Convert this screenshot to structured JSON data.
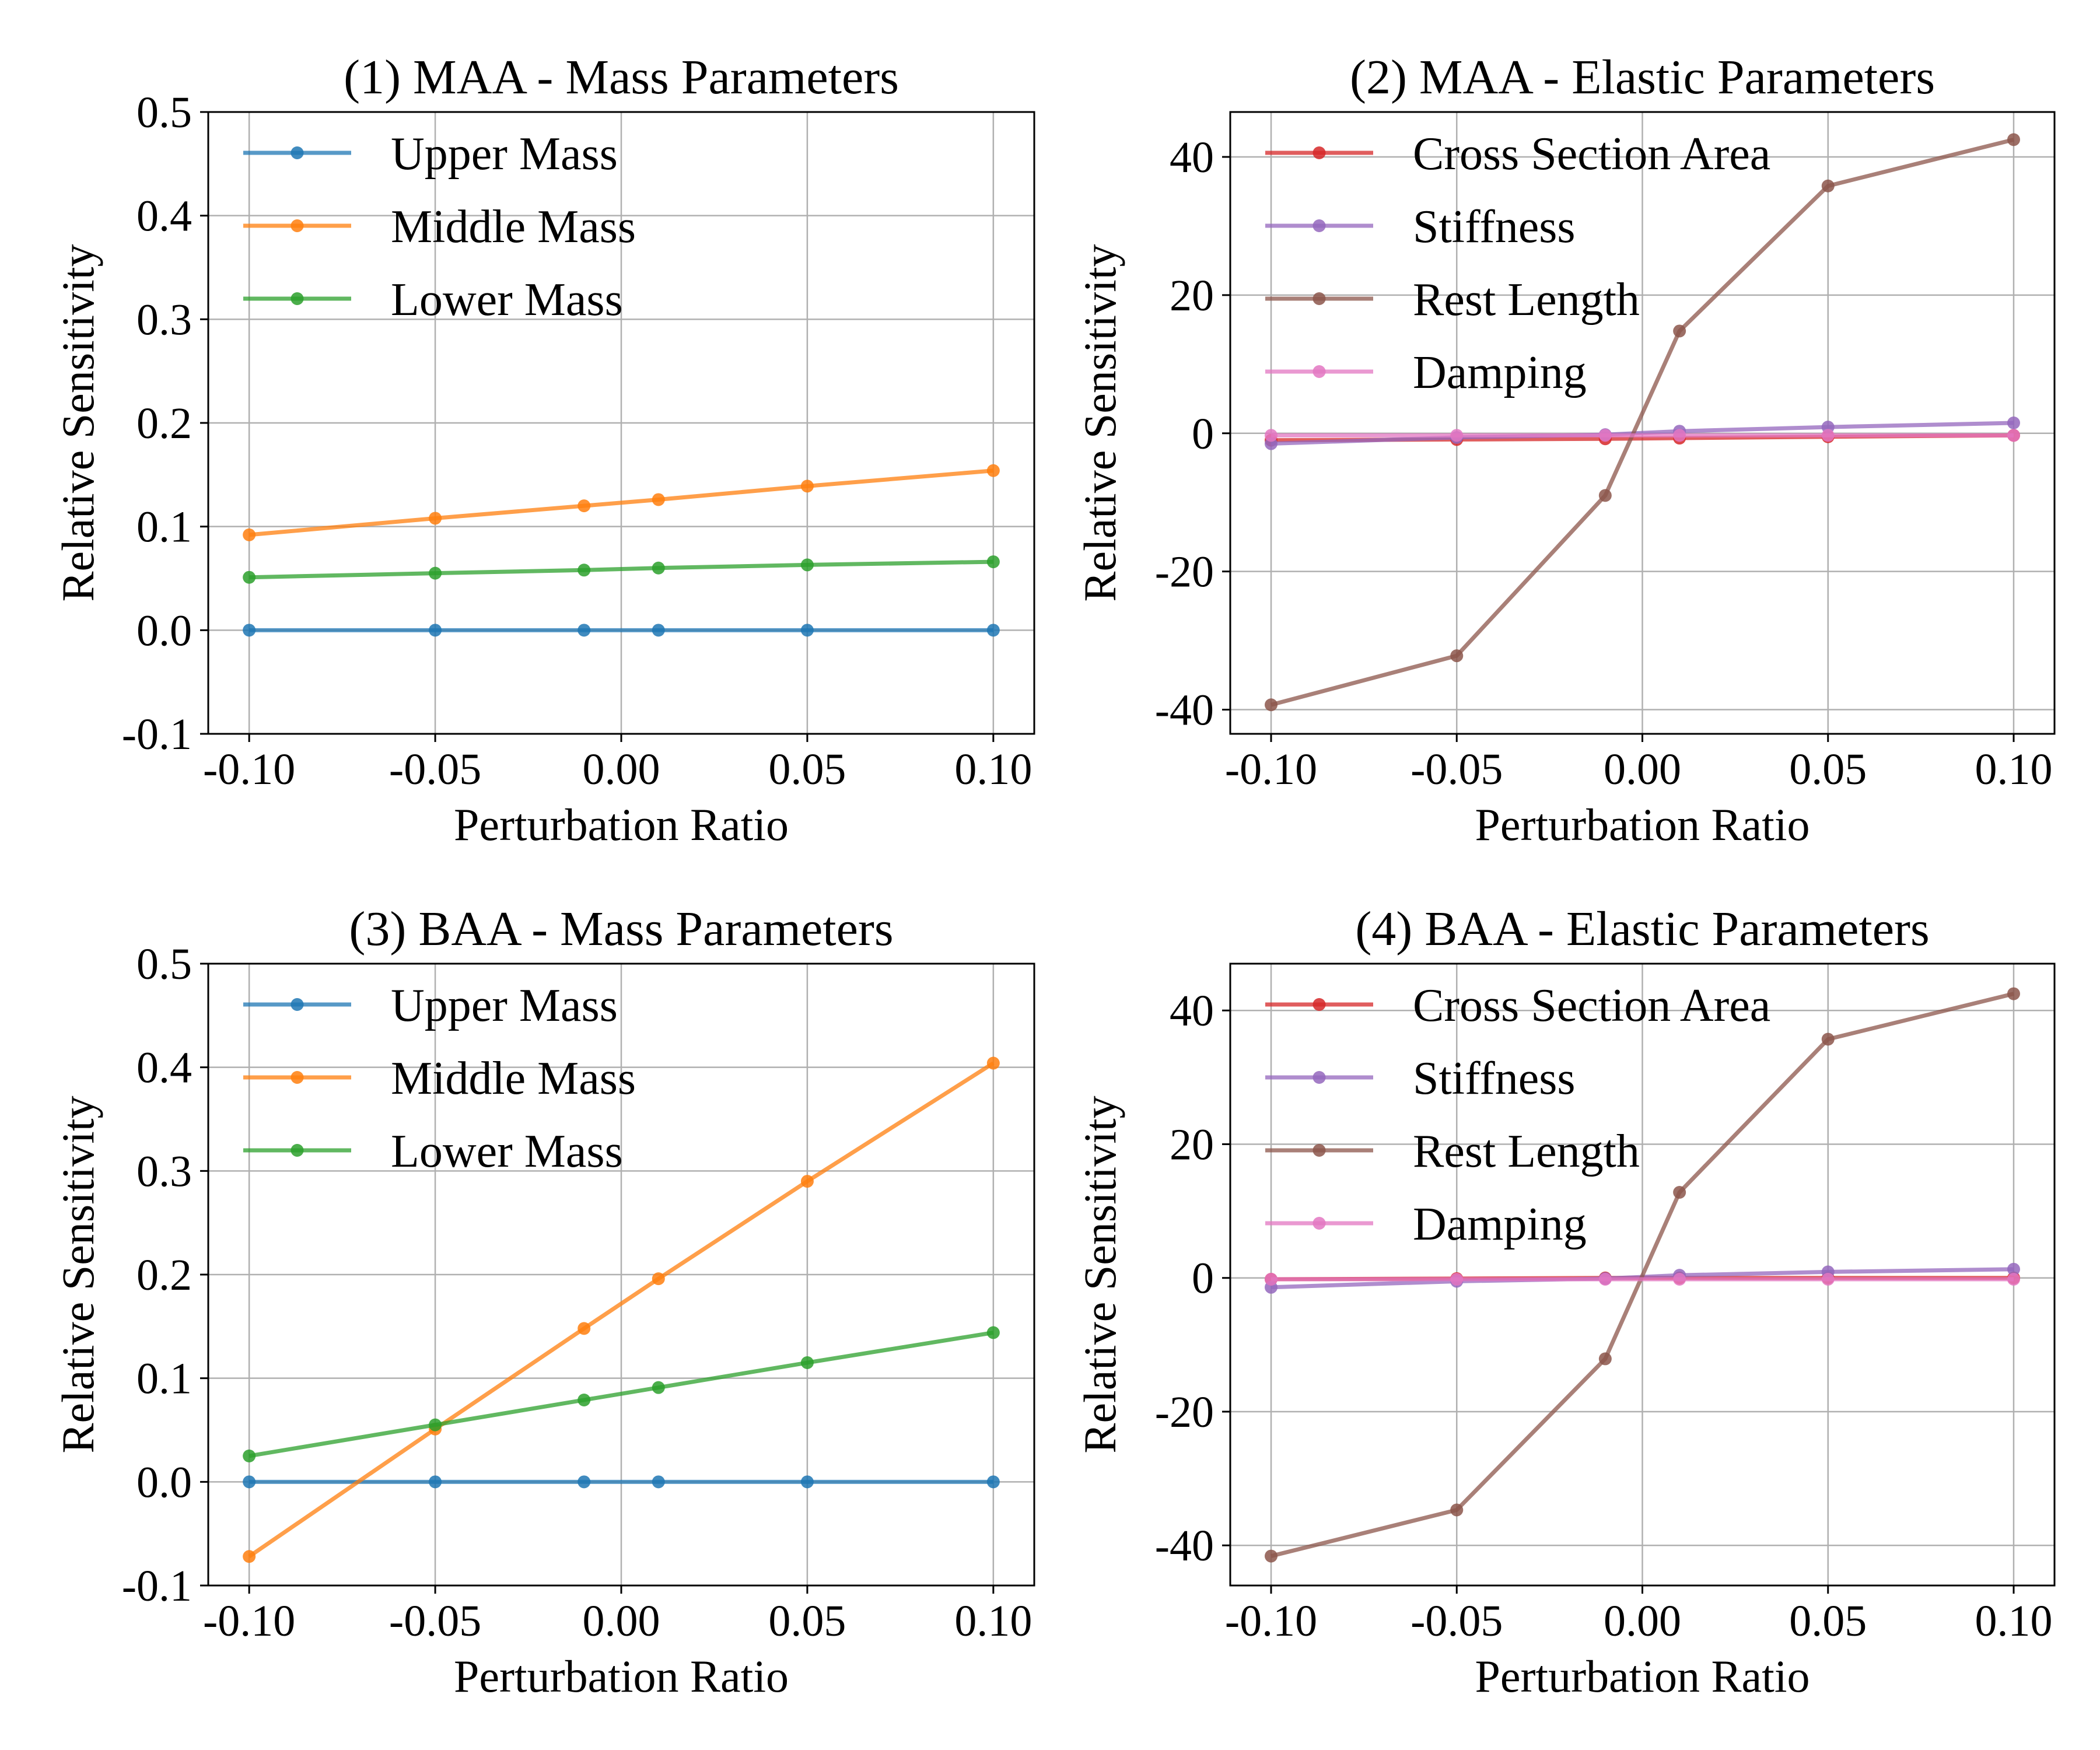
{
  "figure": {
    "series_colors": {
      "upper_mass": "#1f77b4",
      "middle_mass": "#ff7f0e",
      "lower_mass": "#2ca02c",
      "cross_section_area": "#d62728",
      "stiffness": "#9467bd",
      "rest_length": "#8c564b",
      "damping": "#e377c2"
    }
  },
  "chart_data": [
    {
      "type": "line",
      "title": "(1) MAA - Mass Parameters",
      "xlabel": "Perturbation Ratio",
      "ylabel": "Relative Sensitivity",
      "x": [
        -0.1,
        -0.05,
        -0.01,
        0.01,
        0.05,
        0.1
      ],
      "xticks": [
        -0.1,
        -0.05,
        0.0,
        0.05,
        0.1
      ],
      "xtick_labels": [
        "-0.10",
        "-0.05",
        "0.00",
        "0.05",
        "0.10"
      ],
      "xlim": [
        -0.111,
        0.111
      ],
      "ylim": [
        -0.1,
        0.5
      ],
      "yticks": [
        -0.1,
        0.0,
        0.1,
        0.2,
        0.3,
        0.4,
        0.5
      ],
      "ytick_labels": [
        "-0.1",
        "0.0",
        "0.1",
        "0.2",
        "0.3",
        "0.4",
        "0.5"
      ],
      "grid": true,
      "legend_position": "upper-left",
      "series": [
        {
          "name": "Upper Mass",
          "color": "#1f77b4",
          "values": [
            0.0,
            0.0,
            0.0,
            0.0,
            0.0,
            0.0
          ]
        },
        {
          "name": "Middle Mass",
          "color": "#ff7f0e",
          "values": [
            0.092,
            0.108,
            0.12,
            0.126,
            0.139,
            0.154
          ]
        },
        {
          "name": "Lower Mass",
          "color": "#2ca02c",
          "values": [
            0.051,
            0.055,
            0.058,
            0.06,
            0.063,
            0.066
          ]
        }
      ]
    },
    {
      "type": "line",
      "title": "(2) MAA - Elastic Parameters",
      "xlabel": "Perturbation Ratio",
      "ylabel": "Relative Sensitivity",
      "x": [
        -0.1,
        -0.05,
        -0.01,
        0.01,
        0.05,
        0.1
      ],
      "xticks": [
        -0.1,
        -0.05,
        0.0,
        0.05,
        0.1
      ],
      "xtick_labels": [
        "-0.10",
        "-0.05",
        "0.00",
        "0.05",
        "0.10"
      ],
      "xlim": [
        -0.111,
        0.111
      ],
      "ylim": [
        -43.5,
        46.5
      ],
      "yticks": [
        -40,
        -20,
        0,
        20,
        40
      ],
      "ytick_labels": [
        "-40",
        "-20",
        "0",
        "20",
        "40"
      ],
      "grid": true,
      "legend_position": "upper-left",
      "series": [
        {
          "name": "Cross Section Area",
          "color": "#d62728",
          "values": [
            -1.0,
            -0.9,
            -0.8,
            -0.7,
            -0.5,
            -0.3
          ]
        },
        {
          "name": "Stiffness",
          "color": "#9467bd",
          "values": [
            -1.5,
            -0.6,
            -0.2,
            0.3,
            0.9,
            1.5
          ]
        },
        {
          "name": "Rest Length",
          "color": "#8c564b",
          "values": [
            -39.3,
            -32.2,
            -9.0,
            14.8,
            35.8,
            42.5
          ]
        },
        {
          "name": "Damping",
          "color": "#e377c2",
          "values": [
            -0.3,
            -0.3,
            -0.3,
            -0.3,
            -0.3,
            -0.3
          ]
        }
      ]
    },
    {
      "type": "line",
      "title": "(3) BAA - Mass Parameters",
      "xlabel": "Perturbation Ratio",
      "ylabel": "Relative Sensitivity",
      "x": [
        -0.1,
        -0.05,
        -0.01,
        0.01,
        0.05,
        0.1
      ],
      "xticks": [
        -0.1,
        -0.05,
        0.0,
        0.05,
        0.1
      ],
      "xtick_labels": [
        "-0.10",
        "-0.05",
        "0.00",
        "0.05",
        "0.10"
      ],
      "xlim": [
        -0.111,
        0.111
      ],
      "ylim": [
        -0.1,
        0.5
      ],
      "yticks": [
        -0.1,
        0.0,
        0.1,
        0.2,
        0.3,
        0.4,
        0.5
      ],
      "ytick_labels": [
        "-0.1",
        "0.0",
        "0.1",
        "0.2",
        "0.3",
        "0.4",
        "0.5"
      ],
      "grid": true,
      "legend_position": "upper-left",
      "series": [
        {
          "name": "Upper Mass",
          "color": "#1f77b4",
          "values": [
            0.0,
            0.0,
            0.0,
            0.0,
            0.0,
            0.0
          ]
        },
        {
          "name": "Middle Mass",
          "color": "#ff7f0e",
          "values": [
            -0.072,
            0.051,
            0.148,
            0.196,
            0.29,
            0.404
          ]
        },
        {
          "name": "Lower Mass",
          "color": "#2ca02c",
          "values": [
            0.025,
            0.055,
            0.079,
            0.091,
            0.115,
            0.144
          ]
        }
      ]
    },
    {
      "type": "line",
      "title": "(4) BAA - Elastic Parameters",
      "xlabel": "Perturbation Ratio",
      "ylabel": "Relative Sensitivity",
      "x": [
        -0.1,
        -0.05,
        -0.01,
        0.01,
        0.05,
        0.1
      ],
      "xticks": [
        -0.1,
        -0.05,
        0.0,
        0.05,
        0.1
      ],
      "xtick_labels": [
        "-0.10",
        "-0.05",
        "0.00",
        "0.05",
        "0.10"
      ],
      "xlim": [
        -0.111,
        0.111
      ],
      "ylim": [
        -46.0,
        47.0
      ],
      "yticks": [
        -40,
        -20,
        0,
        20,
        40
      ],
      "ytick_labels": [
        "-40",
        "-20",
        "0",
        "20",
        "40"
      ],
      "grid": true,
      "legend_position": "upper-left",
      "series": [
        {
          "name": "Cross Section Area",
          "color": "#d62728",
          "values": [
            -0.2,
            -0.1,
            0.0,
            0.0,
            0.0,
            0.0
          ]
        },
        {
          "name": "Stiffness",
          "color": "#9467bd",
          "values": [
            -1.4,
            -0.5,
            -0.1,
            0.4,
            0.9,
            1.3
          ]
        },
        {
          "name": "Rest Length",
          "color": "#8c564b",
          "values": [
            -41.6,
            -34.7,
            -12.1,
            12.8,
            35.7,
            42.5
          ]
        },
        {
          "name": "Damping",
          "color": "#e377c2",
          "values": [
            -0.2,
            -0.2,
            -0.2,
            -0.2,
            -0.2,
            -0.2
          ]
        }
      ]
    }
  ]
}
